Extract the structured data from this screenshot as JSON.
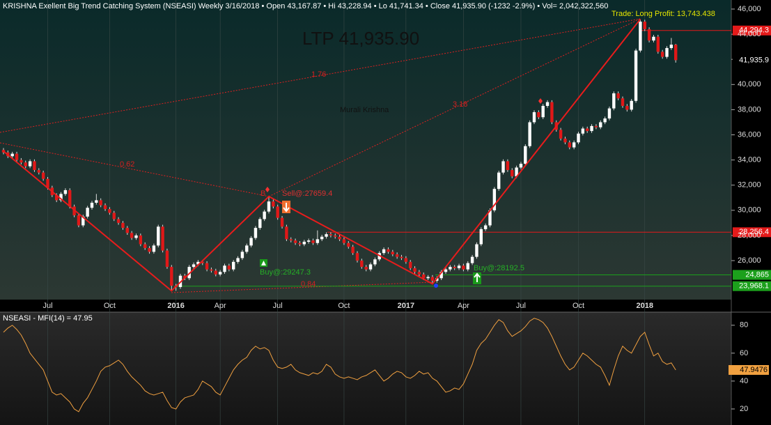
{
  "chart_data": [
    {
      "type": "candlestick",
      "title": "KRISHNA Exellent Big Trend Catching System (NSEASI) Weekly  3/16/2018  •  Open 43,167.87  •  Hi 43,228.94  •  Lo 41,741.34  •  Close 41,935.90 (-1232 -2.9%)  •  Vol= 2,042,322,560",
      "trade": "Trade: Long Profit: 13,743.438",
      "ltp": "LTP 41,935.90",
      "annotations": [
        "1.76",
        "3.18",
        "0.62",
        "0.84",
        "B",
        "Murali Krishna"
      ],
      "signals": [
        "Sell@:27659.4",
        "Buy@:29247.3",
        "Buy@:28192.5"
      ],
      "up_color": "#ffffff",
      "down_color": "#e01818",
      "categories": [
        null,
        null,
        null,
        null,
        null,
        null,
        null,
        null,
        null,
        null,
        "Jul",
        null,
        null,
        null,
        null,
        null,
        null,
        null,
        null,
        null,
        null,
        null,
        null,
        null,
        "Oct",
        null,
        null,
        null,
        null,
        null,
        null,
        null,
        null,
        null,
        null,
        null,
        null,
        null,
        null,
        "2016",
        null,
        null,
        null,
        null,
        null,
        null,
        null,
        null,
        null,
        "Apr",
        null,
        null,
        null,
        null,
        null,
        null,
        null,
        null,
        null,
        null,
        null,
        null,
        "Jul",
        null,
        null,
        null,
        null,
        null,
        null,
        null,
        null,
        null,
        null,
        null,
        null,
        null,
        null,
        "Oct",
        null,
        null,
        null,
        null,
        null,
        null,
        null,
        null,
        null,
        null,
        null,
        null,
        null,
        "2017",
        null,
        null,
        null,
        null,
        null,
        null,
        null,
        null,
        null,
        null,
        null,
        null,
        "Apr",
        null,
        null,
        null,
        null,
        null,
        null,
        null,
        null,
        null,
        null,
        null,
        null,
        "Jul",
        null,
        null,
        null,
        null,
        null,
        null,
        null,
        null,
        null,
        null,
        null,
        null,
        "Oct",
        null,
        null,
        null,
        null,
        null,
        null,
        null,
        null,
        null,
        null,
        null,
        null,
        null,
        null,
        "2018",
        null,
        null,
        null,
        null,
        null,
        null,
        null
      ],
      "open": [
        34800,
        34600,
        34300,
        34500,
        34000,
        33800,
        33500,
        33900,
        33200,
        33000,
        32500,
        31800,
        31200,
        30800,
        31300,
        31600,
        30300,
        29600,
        28800,
        29500,
        30200,
        30600,
        30800,
        30400,
        30100,
        29800,
        29300,
        29000,
        28600,
        28200,
        27800,
        28000,
        27300,
        27000,
        26700,
        27200,
        28700,
        26800,
        25500,
        24000,
        23900,
        24800,
        24600,
        25500,
        25700,
        25900,
        25800,
        25300,
        25200,
        24900,
        25100,
        25600,
        25300,
        25900,
        26200,
        26700,
        27200,
        27800,
        28600,
        29300,
        29900,
        30700,
        30300,
        29400,
        28700,
        27700,
        27600,
        27400,
        27300,
        27500,
        27600,
        27400,
        27700,
        27900,
        28100,
        28000,
        27900,
        27700,
        27400,
        27100,
        26600,
        26000,
        25500,
        25300,
        25700,
        26100,
        26600,
        26900,
        26700,
        26500,
        26300,
        26200,
        25900,
        25400,
        25100,
        24900,
        24600,
        24700,
        24400,
        24600,
        25100,
        25300,
        25500,
        25400,
        25600,
        25300,
        25800,
        26300,
        27300,
        28500,
        28800,
        30000,
        31700,
        33000,
        33900,
        33200,
        32700,
        33400,
        33700,
        35100,
        37000,
        37800,
        37400,
        38300,
        38600,
        37000,
        36400,
        35700,
        35400,
        35000,
        35400,
        36100,
        36500,
        36300,
        36700,
        36600,
        37000,
        37300,
        38100,
        39300,
        38900,
        38300,
        38000,
        38700,
        42700,
        45000,
        44400,
        43500,
        43800,
        42600,
        42200,
        42900,
        43167.87
      ],
      "high": [
        34950,
        34750,
        34650,
        34650,
        34150,
        33950,
        34050,
        34050,
        33350,
        33150,
        32650,
        31950,
        31350,
        31450,
        31750,
        31750,
        30450,
        29750,
        29650,
        30350,
        30750,
        31300,
        30950,
        30550,
        30250,
        29950,
        29450,
        29150,
        28750,
        28350,
        28150,
        28150,
        27450,
        27150,
        27350,
        28850,
        28850,
        26950,
        25650,
        24150,
        24950,
        24950,
        25650,
        25850,
        26050,
        26050,
        25950,
        25450,
        25350,
        25250,
        25750,
        25750,
        26050,
        26350,
        26850,
        27350,
        27950,
        28750,
        29450,
        30050,
        31100,
        30850,
        30450,
        29550,
        28850,
        27850,
        27750,
        27550,
        27650,
        27750,
        27750,
        28400,
        28050,
        28250,
        28250,
        28150,
        28050,
        27850,
        27550,
        27250,
        26750,
        26150,
        25650,
        25850,
        26250,
        26750,
        27050,
        27050,
        26850,
        26650,
        26450,
        26350,
        26050,
        25550,
        25250,
        25050,
        24850,
        24850,
        24750,
        25250,
        25450,
        25650,
        25650,
        25750,
        25750,
        25950,
        26450,
        27450,
        28650,
        28950,
        30150,
        31850,
        33150,
        34050,
        34050,
        33350,
        33550,
        33850,
        35250,
        37150,
        37950,
        37950,
        38450,
        38750,
        38750,
        37150,
        36550,
        35850,
        35550,
        35550,
        36250,
        36650,
        36650,
        36850,
        36850,
        37150,
        37450,
        38250,
        39450,
        39450,
        39050,
        38450,
        38850,
        42850,
        45200,
        45150,
        44550,
        43950,
        43950,
        42750,
        43050,
        43700,
        43228.94
      ],
      "low": [
        34450,
        34150,
        34150,
        33850,
        33650,
        33350,
        33350,
        33050,
        32850,
        32350,
        31650,
        31050,
        30650,
        30650,
        31150,
        30150,
        29450,
        28650,
        28650,
        29350,
        30050,
        30450,
        30250,
        29950,
        29650,
        29150,
        28850,
        28450,
        28050,
        27650,
        27650,
        27150,
        26850,
        26550,
        26550,
        27050,
        26650,
        25350,
        23600,
        23600,
        23750,
        24450,
        24450,
        25350,
        25550,
        25650,
        25150,
        25050,
        24750,
        24750,
        24950,
        25150,
        25150,
        25750,
        26050,
        26550,
        27050,
        27650,
        28450,
        29150,
        29750,
        30150,
        29250,
        28550,
        27550,
        27450,
        27250,
        27150,
        27150,
        27350,
        27250,
        27250,
        27550,
        27750,
        27850,
        27750,
        27550,
        27250,
        26950,
        26450,
        25850,
        25350,
        25150,
        25150,
        25550,
        25950,
        26450,
        26550,
        26350,
        26150,
        26050,
        25750,
        25250,
        24950,
        24750,
        24450,
        24450,
        24150,
        24250,
        24450,
        24950,
        25150,
        25250,
        25250,
        25150,
        25150,
        25650,
        26150,
        27150,
        28350,
        28650,
        29850,
        31550,
        32850,
        33050,
        32550,
        32550,
        33250,
        33550,
        34950,
        36850,
        37250,
        37250,
        38150,
        36850,
        36250,
        35550,
        35250,
        34850,
        34850,
        35250,
        35950,
        36150,
        36150,
        36450,
        36450,
        36850,
        37150,
        37950,
        38750,
        38150,
        37850,
        37850,
        38550,
        42550,
        44250,
        43350,
        43350,
        42450,
        42050,
        42050,
        42750,
        41741.34
      ],
      "close": [
        34600,
        34300,
        34500,
        34000,
        33800,
        33500,
        33900,
        33200,
        33000,
        32500,
        31800,
        31200,
        30800,
        31300,
        31600,
        30300,
        29600,
        28800,
        29500,
        30200,
        30600,
        30800,
        30400,
        30100,
        29800,
        29300,
        29000,
        28600,
        28200,
        27800,
        28000,
        27300,
        27000,
        26700,
        27200,
        28700,
        26800,
        25500,
        24000,
        23900,
        24800,
        24600,
        25500,
        25700,
        25900,
        25800,
        25300,
        25200,
        24900,
        25100,
        25600,
        25300,
        25900,
        26200,
        26700,
        27200,
        27800,
        28600,
        29300,
        29900,
        30700,
        30300,
        29400,
        28700,
        27700,
        27600,
        27400,
        27300,
        27500,
        27600,
        27400,
        27700,
        27900,
        28100,
        28000,
        27900,
        27700,
        27400,
        27100,
        26600,
        26000,
        25500,
        25300,
        25700,
        26100,
        26600,
        26900,
        26700,
        26500,
        26300,
        26200,
        25900,
        25400,
        25100,
        24900,
        24600,
        24700,
        24400,
        24600,
        25100,
        25300,
        25500,
        25400,
        25600,
        25300,
        25800,
        26300,
        27300,
        28500,
        28800,
        30000,
        31700,
        33000,
        33900,
        33200,
        32700,
        33400,
        33700,
        35100,
        37000,
        37800,
        37400,
        38300,
        38600,
        37000,
        36400,
        35700,
        35400,
        35000,
        35400,
        36100,
        36500,
        36300,
        36700,
        36600,
        37000,
        37300,
        38100,
        39300,
        38900,
        38300,
        38000,
        38700,
        42700,
        45000,
        44400,
        43500,
        43800,
        42600,
        42200,
        42900,
        43168,
        41935.9
      ],
      "zigzag": {
        "color": "#e81c1c",
        "x": [
          0,
          38,
          60,
          97,
          144
        ],
        "values": [
          34700,
          23600,
          31100,
          24150,
          45200
        ]
      },
      "levels": [
        {
          "value": 44294.3,
          "label": "44,294.3",
          "color": "#e41a1a"
        },
        {
          "value": 28256.4,
          "label": "28,256.4",
          "color": "#e41a1a"
        },
        {
          "value": 24865,
          "label": "24,865",
          "color": "#1ca01c"
        },
        {
          "value": 23968.1,
          "label": "23,968.1",
          "color": "#1ca01c"
        }
      ],
      "last_price": {
        "value": 41935.9,
        "label": "41,935.9"
      },
      "ylim": [
        22900,
        46720
      ],
      "yticks": [
        {
          "value": 26000,
          "label": "26,000"
        },
        {
          "value": 28000,
          "label": "28,000"
        },
        {
          "value": 30000,
          "label": "30,000"
        },
        {
          "value": 32000,
          "label": "32,000"
        },
        {
          "value": 34000,
          "label": "34,000"
        },
        {
          "value": 36000,
          "label": "36,000"
        },
        {
          "value": 38000,
          "label": "38,000"
        },
        {
          "value": 40000,
          "label": "40,000"
        },
        {
          "value": 42000,
          "label": "42,000"
        },
        {
          "value": 44000,
          "label": "44,000"
        },
        {
          "value": 46000,
          "label": "46,000"
        }
      ]
    },
    {
      "type": "line",
      "title": "NSEASI - MFI(14) = 47.95",
      "series": [
        {
          "name": "MFI(14)",
          "color": "#f0a040",
          "values": [
            75,
            78,
            80,
            77,
            73,
            67,
            60,
            56,
            52,
            48,
            40,
            32,
            30,
            31,
            28,
            25,
            20,
            18,
            24,
            28,
            34,
            40,
            47,
            50,
            51,
            53,
            55,
            52,
            47,
            43,
            40,
            37,
            33,
            31,
            30,
            31,
            32,
            26,
            21,
            20,
            25,
            28,
            29,
            30,
            34,
            40,
            38,
            36,
            32,
            30,
            36,
            42,
            48,
            52,
            55,
            57,
            62,
            65,
            63,
            64,
            62,
            55,
            50,
            49,
            50,
            52,
            48,
            46,
            45,
            44,
            46,
            45,
            47,
            52,
            50,
            45,
            43,
            42,
            43,
            42,
            41,
            43,
            44,
            46,
            48,
            44,
            40,
            42,
            45,
            47,
            46,
            43,
            42,
            44,
            47,
            45,
            46,
            42,
            40,
            36,
            32,
            33,
            35,
            34,
            38,
            45,
            52,
            62,
            67,
            70,
            75,
            80,
            84,
            82,
            76,
            72,
            74,
            76,
            79,
            83,
            85,
            84,
            82,
            78,
            72,
            65,
            58,
            52,
            48,
            50,
            55,
            60,
            58,
            55,
            52,
            50,
            44,
            37,
            48,
            58,
            65,
            62,
            60,
            66,
            72,
            75,
            66,
            58,
            60,
            54,
            52,
            53,
            47.9476
          ]
        }
      ],
      "ylim": [
        8.5,
        89.4
      ],
      "yticks": [
        20,
        40,
        60,
        80
      ]
    }
  ]
}
